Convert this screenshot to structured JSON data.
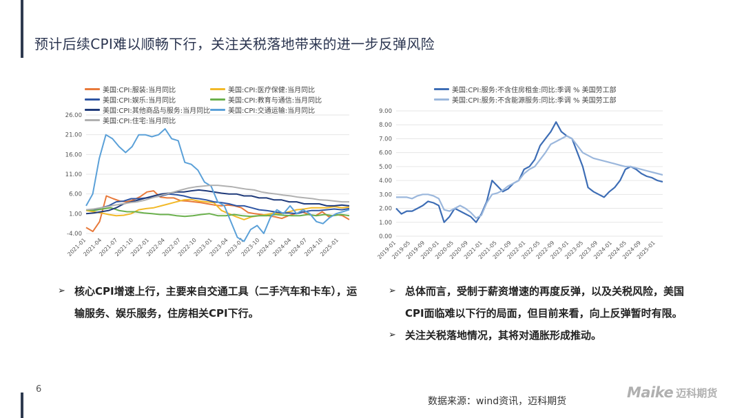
{
  "slide": {
    "title": "预计后续CPI难以顺畅下行，关注关税落地带来的进一步反弹风险",
    "page_number": "6",
    "source": "数据来源：wind资讯，迈科期货",
    "logo_en": "Maike",
    "logo_cn": "迈科期货"
  },
  "bullets_left": [
    "核心CPI增速上行，主要来自交通工具（二手汽车和卡车），运输服务、娱乐服务，住房相关CPI下行。"
  ],
  "bullets_right": [
    "总体而言，受制于薪资增速的再度反弹，以及关税风险，美国CPI面临难以下行的局面，但目前来看，向上反弹暂时有限。",
    "关注关税落地情况，其将对通胀形成推动。"
  ],
  "bullet_marker": "➢",
  "colors": {
    "title": "#2b3550",
    "accent_bar": "#2e3a4f"
  },
  "chart_data": [
    {
      "type": "line",
      "title": "",
      "xlabel": "",
      "ylabel": "",
      "ylim": [
        -4,
        26
      ],
      "yticks": [
        "26.00",
        "21.00",
        "16.00",
        "11.00",
        "6.00",
        "1.00",
        "-4.00"
      ],
      "xticks": [
        "2021-01",
        "2021-04",
        "2021-07",
        "2021-10",
        "2022-01",
        "2022-04",
        "2022-07",
        "2022-10",
        "2023-01",
        "2023-04",
        "2023-07",
        "2023-10",
        "2024-01",
        "2024-04",
        "2024-07",
        "2024-10",
        "2025-01"
      ],
      "x_start": "2021-01",
      "x_end": "2025-03",
      "legend_position": "top",
      "series": [
        {
          "name": "美国:CPI:服装:当月同比",
          "color": "#e8793a",
          "values": [
            -2.5,
            -3.5,
            -1,
            5.5,
            4.8,
            4.2,
            4.0,
            4.5,
            5.3,
            6.5,
            6.8,
            5.2,
            5.0,
            5.0,
            4.3,
            4.2,
            4.0,
            3.8,
            3.5,
            3.2,
            3.0,
            3.2,
            3.0,
            2.5,
            1.3,
            1.0,
            0.8,
            0.5,
            0.2,
            -0.2,
            0.5,
            1.0,
            1.5,
            0.8,
            0.5,
            1.5,
            0.2,
            0.8,
            0.5,
            -0.5
          ]
        },
        {
          "name": "美国:CPI:医疗保健:当月同比",
          "color": "#f2b928",
          "values": [
            1.8,
            1.5,
            1.2,
            0.8,
            0.5,
            0.6,
            1.0,
            2.0,
            2.3,
            2.5,
            3.0,
            3.5,
            4.0,
            4.5,
            4.6,
            4.2,
            4.0,
            3.8,
            1.8,
            1.0,
            0.2,
            -0.5,
            0.2,
            0.5,
            0.8,
            1.2,
            1.0,
            1.5,
            2.0,
            2.2,
            2.5,
            2.5,
            2.5,
            2.8,
            2.5,
            2.7
          ]
        },
        {
          "name": "美国:CPI:娱乐:当月同比",
          "color": "#2e55a3",
          "values": [
            2.0,
            2.0,
            2.5,
            3.0,
            4.0,
            4.2,
            4.8,
            4.8,
            5.0,
            5.2,
            5.5,
            6.0,
            5.8,
            5.5,
            5.0,
            4.8,
            4.5,
            4.0,
            3.8,
            3.5,
            3.0,
            3.0,
            2.5,
            2.0,
            1.8,
            1.5,
            1.2,
            1.2,
            1.0,
            1.5,
            1.8,
            1.8,
            2.0,
            2.2,
            2.0,
            2.3
          ]
        },
        {
          "name": "美国:CPI:教育与通信:当月同比",
          "color": "#6ab04c",
          "values": [
            2.0,
            1.8,
            2.2,
            2.5,
            1.8,
            1.5,
            1.5,
            1.2,
            1.0,
            0.8,
            0.8,
            0.5,
            0.3,
            0.5,
            0.8,
            1.0,
            0.5,
            0.5,
            0.8,
            0.5,
            0.3,
            0.5,
            0.5,
            0.8,
            0.6,
            0.5,
            0.5,
            0.8,
            0.5,
            0.8,
            0.5,
            0.8,
            0.5
          ]
        },
        {
          "name": "美国:CPI:其他商品与服务:当月同比",
          "color": "#1f3a7a",
          "values": [
            1.0,
            1.2,
            1.5,
            1.8,
            2.5,
            3.5,
            4.0,
            4.5,
            5.0,
            5.5,
            6.0,
            6.2,
            6.5,
            6.5,
            6.8,
            7.0,
            6.8,
            6.5,
            6.2,
            6.0,
            6.0,
            5.5,
            5.5,
            5.0,
            5.0,
            4.5,
            4.5,
            4.0,
            4.0,
            3.5,
            3.5,
            3.5,
            3.0,
            3.0,
            3.2,
            3.0
          ]
        },
        {
          "name": "美国:CPI:交通运输:当月同比",
          "color": "#5aa0d8",
          "values": [
            3.0,
            6.0,
            15.0,
            21.0,
            20.0,
            18.0,
            16.5,
            18.0,
            21.0,
            21.0,
            20.5,
            21.0,
            22.5,
            20.0,
            19.5,
            14.0,
            13.5,
            12.0,
            9.0,
            8.0,
            4.0,
            3.0,
            -1.0,
            -5.0,
            -6.0,
            -3.0,
            -2.0,
            -4.0,
            0.0,
            2.0,
            1.0,
            3.0,
            1.0,
            2.0,
            1.0,
            -1.0,
            -1.5,
            0.0,
            1.0,
            1.5,
            2.0
          ]
        },
        {
          "name": "美国:CPI:住宅:当月同比",
          "color": "#b0b0b0",
          "values": [
            2.0,
            2.2,
            2.5,
            2.8,
            3.2,
            3.5,
            3.8,
            4.0,
            4.4,
            5.0,
            5.5,
            6.0,
            6.5,
            7.0,
            7.5,
            7.8,
            8.0,
            8.2,
            8.2,
            8.0,
            7.8,
            7.5,
            7.2,
            7.0,
            6.5,
            6.2,
            6.0,
            5.7,
            5.5,
            5.2,
            5.0,
            4.8,
            4.5,
            4.4,
            4.2,
            4.0,
            4.0
          ]
        }
      ]
    },
    {
      "type": "line",
      "title": "",
      "xlabel": "",
      "ylabel": "",
      "ylim": [
        0,
        9
      ],
      "yticks": [
        "9.00",
        "8.00",
        "7.00",
        "6.00",
        "5.00",
        "4.00",
        "3.00",
        "2.00",
        "1.00",
        "0.00"
      ],
      "xticks": [
        "2019-01",
        "2019-05",
        "2019-09",
        "2020-01",
        "2020-05",
        "2020-09",
        "2021-01",
        "2021-05",
        "2021-09",
        "2022-01",
        "2022-05",
        "2022-09",
        "2023-01",
        "2023-05",
        "2023-09",
        "2024-01",
        "2024-05",
        "2024-09",
        "2025-01"
      ],
      "x_start": "2019-01",
      "x_end": "2025-03",
      "legend_position": "top",
      "series": [
        {
          "name": "美国:CPI:服务:不含住房租金:同比:季调 % 美国劳工部",
          "color": "#3d6db5",
          "values": [
            2.0,
            1.6,
            1.8,
            1.8,
            2.0,
            2.2,
            2.5,
            2.4,
            2.2,
            1.0,
            1.4,
            2.0,
            1.8,
            1.6,
            1.4,
            1.0,
            1.6,
            2.5,
            4.0,
            3.6,
            3.2,
            3.4,
            3.8,
            4.0,
            4.8,
            5.0,
            5.5,
            6.5,
            7.0,
            7.5,
            8.2,
            7.5,
            7.2,
            7.0,
            6.0,
            5.0,
            3.5,
            3.2,
            3.0,
            2.8,
            3.2,
            3.5,
            4.0,
            4.8,
            5.0,
            4.8,
            4.5,
            4.3,
            4.2,
            4.0,
            3.9
          ]
        },
        {
          "name": "美国:CPI:服务:不含能源服务:同比:季调 % 美国劳工部",
          "color": "#9bb7dc",
          "values": [
            2.8,
            2.8,
            2.8,
            2.7,
            2.9,
            3.0,
            3.0,
            2.9,
            2.7,
            1.9,
            1.8,
            2.0,
            2.2,
            2.0,
            1.7,
            1.3,
            1.5,
            2.4,
            3.0,
            3.1,
            3.3,
            3.6,
            3.8,
            4.0,
            4.5,
            4.8,
            5.0,
            5.5,
            6.0,
            6.6,
            6.8,
            7.0,
            7.2,
            7.0,
            6.5,
            6.0,
            5.8,
            5.6,
            5.5,
            5.4,
            5.3,
            5.2,
            5.1,
            5.0,
            5.0,
            4.9,
            4.8,
            4.7,
            4.6,
            4.5,
            4.4
          ]
        }
      ]
    }
  ]
}
